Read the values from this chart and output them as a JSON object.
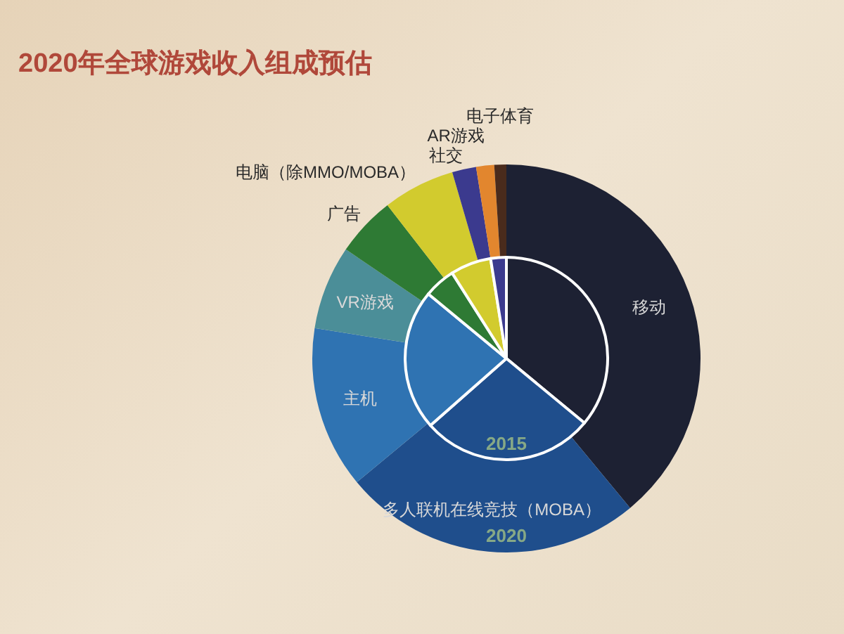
{
  "chart_data": {
    "type": "donut",
    "title": "2020年全球游戏收入组成预估",
    "categories": [
      "移动",
      "多人联机在线竞技（MOBA）",
      "主机",
      "VR游戏",
      "广告",
      "电脑（除MMO/MOBA）",
      "社交",
      "AR游戏",
      "电子体育"
    ],
    "colors": [
      "#1d2133",
      "#1f4e8c",
      "#2f73b2",
      "#4b8e98",
      "#2e7a34",
      "#d2cb2e",
      "#3b3a8e",
      "#e2862e",
      "#4a2b1c"
    ],
    "series": [
      {
        "name": "2020",
        "type": "donut",
        "values": [
          39,
          25,
          13.5,
          7,
          5,
          6,
          2,
          1.5,
          1
        ]
      },
      {
        "name": "2015",
        "type": "pie",
        "values": [
          36,
          27.5,
          22.5,
          null,
          5,
          6.5,
          2.5,
          null,
          null
        ]
      }
    ],
    "legend": false
  }
}
